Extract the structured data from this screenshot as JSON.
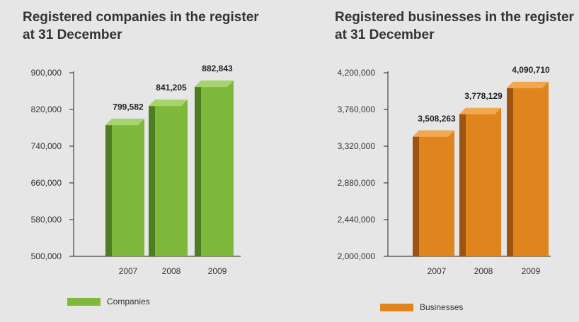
{
  "chart_data": [
    {
      "type": "bar",
      "title": "Registered companies in the register at 31 December",
      "categories": [
        "2007",
        "2008",
        "2009"
      ],
      "series": [
        {
          "name": "Companies",
          "values": [
            799582,
            841205,
            882843
          ]
        }
      ],
      "value_labels": [
        "799,582",
        "841,205",
        "882,843"
      ],
      "ylim": [
        500000,
        900000
      ],
      "yticks": [
        900000,
        820000,
        740000,
        660000,
        580000,
        500000
      ],
      "ytick_labels": [
        "900,000",
        "820,000",
        "740,000",
        "660,000",
        "580,000",
        "500,000"
      ],
      "grid": false,
      "legend_position": "bottom-left",
      "colors": {
        "front": "#7fb93b",
        "side": "#4f7d22",
        "top": "#a6d36b"
      }
    },
    {
      "type": "bar",
      "title": "Registered businesses in the register at 31 December",
      "categories": [
        "2007",
        "2008",
        "2009"
      ],
      "series": [
        {
          "name": "Businesses",
          "values": [
            3508263,
            3778129,
            4090710
          ]
        }
      ],
      "value_labels": [
        "3,508,263",
        "3,778,129",
        "4,090,710"
      ],
      "ylim": [
        2000000,
        4200000
      ],
      "yticks": [
        4200000,
        3760000,
        3320000,
        2880000,
        2440000,
        2000000
      ],
      "ytick_labels": [
        "4,200,000",
        "3,760,000",
        "3,320,000",
        "2,880,000",
        "2,440,000",
        "2,000,000"
      ],
      "grid": false,
      "legend_position": "bottom-left",
      "colors": {
        "front": "#e0841d",
        "side": "#9b5510",
        "top": "#f2a850"
      }
    }
  ]
}
